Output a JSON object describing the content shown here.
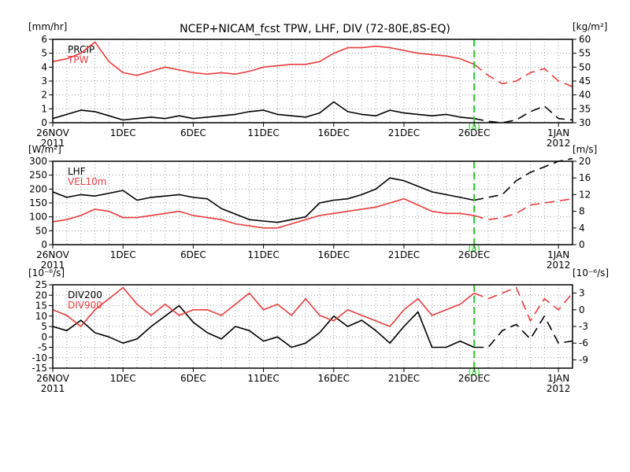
{
  "title": "NCEP+NICAM_fcst TPW, LHF, DIV (72-80E,8S-EQ)",
  "colors": {
    "black": "#000000",
    "red": "#e83c3c",
    "green": "#22cc22"
  },
  "x_ticks": [
    {
      "t": 0,
      "label": "26NOV",
      "sub": "2011"
    },
    {
      "t": 5,
      "label": "1DEC",
      "sub": ""
    },
    {
      "t": 10,
      "label": "6DEC",
      "sub": ""
    },
    {
      "t": 15,
      "label": "11DEC",
      "sub": ""
    },
    {
      "t": 20,
      "label": "16DEC",
      "sub": ""
    },
    {
      "t": 25,
      "label": "21DEC",
      "sub": ""
    },
    {
      "t": 30,
      "label": "26DEC",
      "sub": ""
    },
    {
      "t": 36,
      "label": "1JAN",
      "sub": "2012"
    }
  ],
  "forecast_marker": {
    "t": 30,
    "label": "(a)"
  },
  "chart_data": [
    {
      "type": "line",
      "title": "NCEP+NICAM_fcst TPW, LHF, DIV (72-80E,8S-EQ)",
      "xlim": [
        0,
        37
      ],
      "x": [
        0,
        1,
        2,
        3,
        4,
        5,
        6,
        7,
        8,
        9,
        10,
        11,
        12,
        13,
        14,
        15,
        16,
        17,
        18,
        19,
        20,
        21,
        22,
        23,
        24,
        25,
        26,
        27,
        28,
        29,
        30,
        31,
        32,
        33,
        34,
        35,
        36,
        37
      ],
      "left_axis": {
        "unit": "[mm/hr]",
        "ylim": [
          0,
          6
        ],
        "ticks": [
          "0",
          "1",
          "2",
          "3",
          "4",
          "5",
          "6"
        ]
      },
      "right_axis": {
        "unit": "[kg/m²]",
        "ylim": [
          30,
          60
        ],
        "ticks": [
          "30",
          "35",
          "40",
          "45",
          "50",
          "55",
          "60"
        ]
      },
      "series": [
        {
          "name": "PRCIP",
          "axis": "left",
          "color": "#000000",
          "values": [
            0.3,
            0.6,
            0.9,
            0.8,
            0.5,
            0.2,
            0.3,
            0.4,
            0.3,
            0.5,
            0.3,
            0.4,
            0.5,
            0.6,
            0.8,
            0.9,
            0.6,
            0.5,
            0.4,
            0.7,
            1.5,
            0.8,
            0.6,
            0.5,
            0.9,
            0.7,
            0.6,
            0.5,
            0.6,
            0.4,
            0.3,
            0.1,
            0.0,
            0.2,
            0.8,
            1.2,
            0.3,
            0.2
          ],
          "forecast_from": 30
        },
        {
          "name": "TPW",
          "axis": "right",
          "color": "#e83c3c",
          "values": [
            52,
            53,
            55,
            59,
            52,
            48,
            47,
            48.5,
            50,
            49,
            48,
            47.5,
            48,
            47.5,
            48.5,
            50,
            50.5,
            51,
            51,
            52,
            55,
            57,
            57,
            57.5,
            57,
            56,
            55,
            54.5,
            54,
            53,
            51,
            47,
            44,
            45,
            48,
            49.5,
            45,
            43
          ],
          "forecast_from": 30
        }
      ]
    },
    {
      "type": "line",
      "xlim": [
        0,
        37
      ],
      "x": [
        0,
        1,
        2,
        3,
        4,
        5,
        6,
        7,
        8,
        9,
        10,
        11,
        12,
        13,
        14,
        15,
        16,
        17,
        18,
        19,
        20,
        21,
        22,
        23,
        24,
        25,
        26,
        27,
        28,
        29,
        30,
        31,
        32,
        33,
        34,
        35,
        36,
        37
      ],
      "left_axis": {
        "unit": "[W/m²]",
        "ylim": [
          0,
          300
        ],
        "ticks": [
          "0",
          "50",
          "100",
          "150",
          "200",
          "250",
          "300"
        ]
      },
      "right_axis": {
        "unit": "[m/s]",
        "ylim": [
          0,
          20
        ],
        "ticks": [
          "0",
          "4",
          "8",
          "12",
          "16",
          "20"
        ]
      },
      "series": [
        {
          "name": "LHF",
          "axis": "left",
          "color": "#000000",
          "values": [
            190,
            170,
            180,
            175,
            185,
            195,
            160,
            170,
            175,
            180,
            170,
            165,
            130,
            110,
            90,
            85,
            80,
            90,
            100,
            150,
            160,
            165,
            180,
            200,
            240,
            230,
            210,
            190,
            180,
            170,
            160,
            170,
            180,
            230,
            260,
            280,
            300,
            310
          ],
          "forecast_from": 30
        },
        {
          "name": "VEL10m",
          "axis": "right",
          "color": "#e83c3c",
          "values": [
            5.5,
            6,
            7,
            8.5,
            8,
            6.5,
            6.5,
            7,
            7.5,
            8,
            7,
            6.5,
            6,
            5,
            4.5,
            4,
            4,
            5,
            6,
            7,
            7.5,
            8,
            8.5,
            9,
            10,
            11,
            9.5,
            8,
            7.5,
            7.5,
            7,
            6,
            6.5,
            7.5,
            9.5,
            10,
            10.5,
            11
          ],
          "forecast_from": 30
        }
      ]
    },
    {
      "type": "line",
      "xlim": [
        0,
        37
      ],
      "x": [
        0,
        1,
        2,
        3,
        4,
        5,
        6,
        7,
        8,
        9,
        10,
        11,
        12,
        13,
        14,
        15,
        16,
        17,
        18,
        19,
        20,
        21,
        22,
        23,
        24,
        25,
        26,
        27,
        28,
        29,
        30,
        31,
        32,
        33,
        34,
        35,
        36,
        37
      ],
      "left_axis": {
        "unit": "[10⁻⁶/s]",
        "ylim": [
          -15,
          25
        ],
        "ticks": [
          "-15",
          "-10",
          "-5",
          "0",
          "5",
          "10",
          "15",
          "20",
          "25"
        ]
      },
      "right_axis": {
        "unit": "[10⁻⁶/s]",
        "ylim": [
          -10.5,
          4.5
        ],
        "ticks": [
          "-9",
          "-6",
          "-3",
          "0",
          "3"
        ]
      },
      "series": [
        {
          "name": "DIV200",
          "axis": "left",
          "color": "#000000",
          "values": [
            5,
            3,
            8,
            2,
            0,
            -3,
            -1,
            5,
            10,
            15,
            7,
            2,
            -1,
            5,
            3,
            -2,
            0,
            -5,
            -3,
            2,
            10,
            5,
            8,
            3,
            -3,
            5,
            12,
            -5,
            -5,
            -2,
            -5,
            -5,
            3,
            6,
            -1,
            10,
            -3,
            -2
          ],
          "forecast_from": 30
        },
        {
          "name": "DIV900",
          "axis": "right",
          "color": "#e83c3c",
          "values": [
            0,
            -1,
            -3,
            0,
            2,
            4,
            1,
            -1,
            1,
            -1,
            0,
            0,
            -1,
            1,
            3,
            0,
            1,
            -1,
            2,
            -1,
            -2,
            0,
            -1,
            -2,
            -3,
            0,
            2,
            -1,
            0,
            1,
            3,
            2,
            3,
            4,
            -2,
            2,
            0,
            3
          ],
          "forecast_from": 30
        }
      ]
    }
  ]
}
